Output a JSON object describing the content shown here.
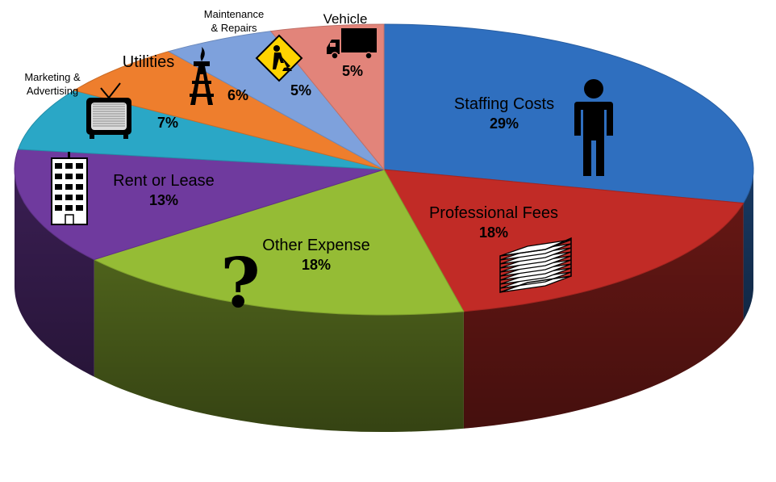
{
  "chart_data": {
    "type": "pie",
    "title": "",
    "style": "3d-exploded-tilt",
    "slices": [
      {
        "label": "Staffing Costs",
        "value": 29,
        "pct_label": "29%",
        "color": "#2F6FBF",
        "icon": "person-icon"
      },
      {
        "label": "Professional Fees",
        "value": 18,
        "pct_label": "18%",
        "color": "#C12B26",
        "icon": "paper-stack-icon"
      },
      {
        "label": "Other Expense",
        "value": 18,
        "pct_label": "18%",
        "color": "#95BC35",
        "icon": "question-mark-icon"
      },
      {
        "label": "Rent or Lease",
        "value": 13,
        "pct_label": "13%",
        "color": "#6F3A9E",
        "icon": "building-icon"
      },
      {
        "label": "Marketing & Advertising",
        "value": 7,
        "pct_label": "7%",
        "color": "#2AA7C6",
        "icon": "television-icon"
      },
      {
        "label": "Utilities",
        "value": 6,
        "pct_label": "6%",
        "color": "#EE7E2D",
        "icon": "oil-derrick-icon"
      },
      {
        "label": "Maintenance & Repairs",
        "value": 5,
        "pct_label": "5%",
        "color": "#7EA1DC",
        "icon": "men-at-work-sign-icon"
      },
      {
        "label": "Vehicle",
        "value": 5,
        "pct_label": "5%",
        "color": "#E2847A",
        "icon": "truck-icon"
      }
    ]
  }
}
